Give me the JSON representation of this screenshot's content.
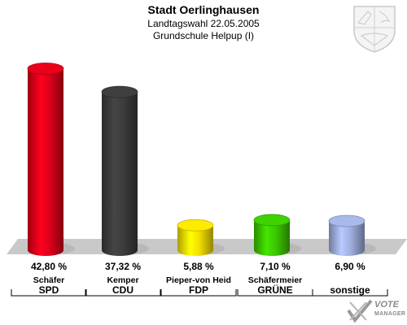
{
  "header": {
    "title": "Stadt Oerlinghausen",
    "subtitle": "Landtagswahl 22.05.2005",
    "district": "Grundschule Helpup (I)"
  },
  "logo": {
    "text": "VOTE",
    "subtext": "MANAGER"
  },
  "chart_data": {
    "type": "bar",
    "categories": [
      "SPD",
      "CDU",
      "FDP",
      "GRÜNE",
      "sonstige"
    ],
    "candidates": [
      "Schäfer",
      "Kemper",
      "Pieper-von Heid",
      "Schäfermeier",
      ""
    ],
    "values": [
      42.8,
      37.32,
      5.88,
      7.1,
      6.9
    ],
    "value_labels": [
      "42,80 %",
      "37,32 %",
      "5,88 %",
      "7,10 %",
      "6,90 %"
    ],
    "colors": [
      "#e0001a",
      "#3c3c3c",
      "#f5e000",
      "#3cc800",
      "#a0b0e0"
    ],
    "ylim": [
      0,
      45
    ],
    "title": "Stadt Oerlinghausen",
    "xlabel": "",
    "ylabel": ""
  }
}
